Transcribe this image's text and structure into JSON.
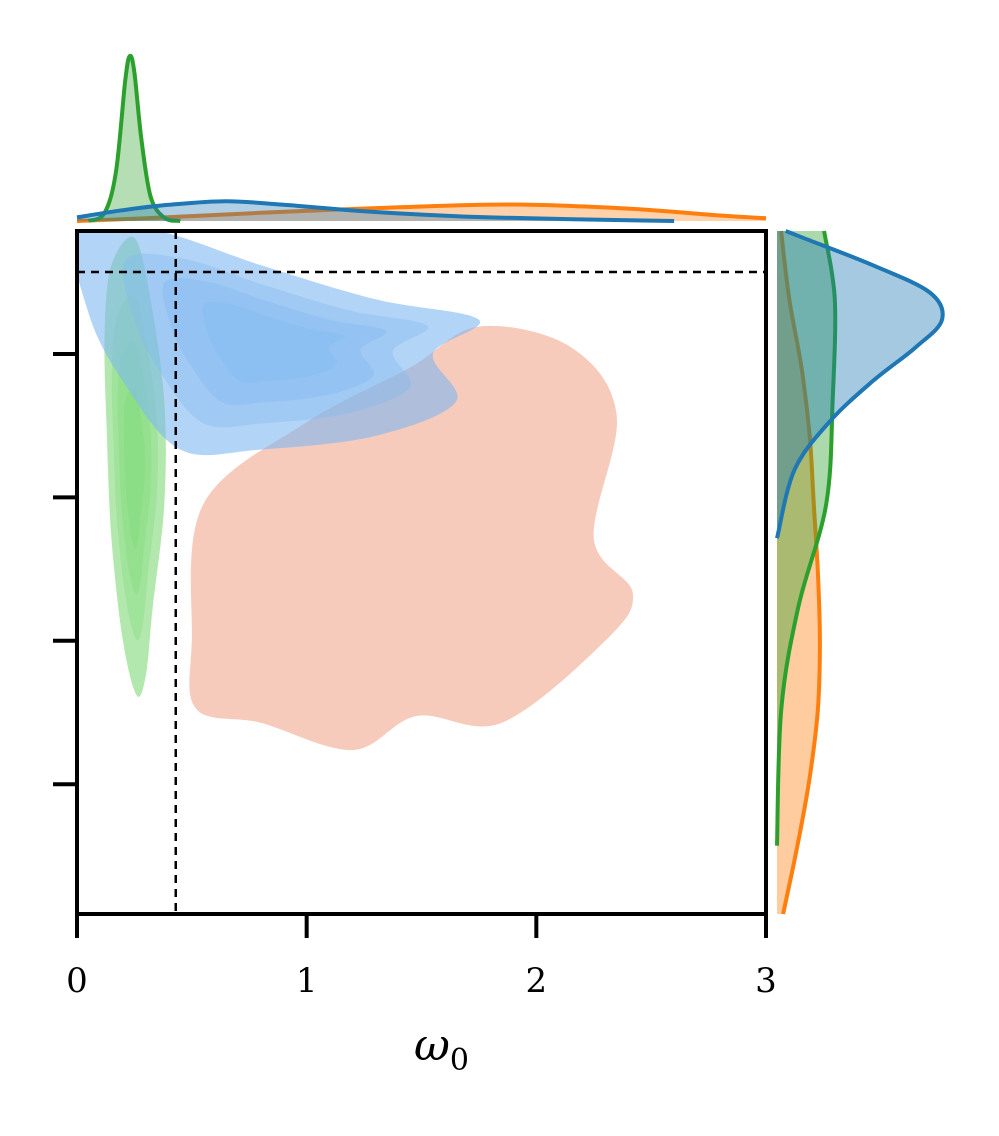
{
  "chart_data": {
    "type": "joint-kde",
    "title": "",
    "xlabel": "ω",
    "xlabel_subscript": "0",
    "ylabel": "",
    "xlim": [
      0,
      3
    ],
    "x_ticks": [
      0,
      1,
      2,
      3
    ],
    "x_tick_labels": [
      "0",
      "1",
      "2",
      "3"
    ],
    "ylim": [
      0,
      1
    ],
    "y_ticks": [
      0.19,
      0.4,
      0.61,
      0.82
    ],
    "y_tick_labels": [],
    "grid": false,
    "legend": "none",
    "reference_lines": {
      "x": 0.43,
      "y": 0.94
    },
    "series": [
      {
        "color": "#ff7f0e",
        "joint_fill": "#f4b7a1",
        "joint_region": [
          [
            1.2,
            0.24
          ],
          [
            1.48,
            0.29
          ],
          [
            1.85,
            0.28
          ],
          [
            2.3,
            0.4
          ],
          [
            2.42,
            0.47
          ],
          [
            2.25,
            0.55
          ],
          [
            2.35,
            0.73
          ],
          [
            2.15,
            0.83
          ],
          [
            1.75,
            0.86
          ],
          [
            1.45,
            0.8
          ],
          [
            1.0,
            0.72
          ],
          [
            0.55,
            0.6
          ],
          [
            0.5,
            0.4
          ],
          [
            0.52,
            0.3
          ],
          [
            0.8,
            0.28
          ]
        ],
        "x_marginal": [
          [
            0.0,
            0.0
          ],
          [
            0.3,
            0.01
          ],
          [
            0.8,
            0.03
          ],
          [
            1.4,
            0.05
          ],
          [
            1.9,
            0.06
          ],
          [
            2.4,
            0.045
          ],
          [
            2.8,
            0.02
          ],
          [
            3.0,
            0.01
          ]
        ],
        "y_marginal": [
          [
            0.0,
            0.03
          ],
          [
            0.1,
            0.1
          ],
          [
            0.2,
            0.16
          ],
          [
            0.3,
            0.2
          ],
          [
            0.4,
            0.21
          ],
          [
            0.5,
            0.2
          ],
          [
            0.6,
            0.18
          ],
          [
            0.7,
            0.16
          ],
          [
            0.8,
            0.12
          ],
          [
            0.9,
            0.06
          ],
          [
            1.0,
            0.02
          ]
        ]
      },
      {
        "color": "#2ca02c",
        "joint_fill": "#7fd977",
        "joint_region": [
          [
            0.26,
            0.32
          ],
          [
            0.3,
            0.35
          ],
          [
            0.33,
            0.45
          ],
          [
            0.38,
            0.6
          ],
          [
            0.38,
            0.75
          ],
          [
            0.32,
            0.9
          ],
          [
            0.25,
            0.99
          ],
          [
            0.15,
            0.95
          ],
          [
            0.12,
            0.85
          ],
          [
            0.13,
            0.7
          ],
          [
            0.15,
            0.55
          ],
          [
            0.2,
            0.4
          ]
        ],
        "x_marginal": [
          [
            0.05,
            0.0
          ],
          [
            0.12,
            0.05
          ],
          [
            0.17,
            0.3
          ],
          [
            0.21,
            0.85
          ],
          [
            0.23,
            1.0
          ],
          [
            0.25,
            0.9
          ],
          [
            0.28,
            0.5
          ],
          [
            0.32,
            0.15
          ],
          [
            0.38,
            0.02
          ],
          [
            0.45,
            0.0
          ]
        ],
        "y_marginal": [
          [
            0.1,
            0.0
          ],
          [
            0.3,
            0.02
          ],
          [
            0.45,
            0.1
          ],
          [
            0.6,
            0.23
          ],
          [
            0.75,
            0.26
          ],
          [
            0.9,
            0.27
          ],
          [
            1.0,
            0.22
          ]
        ]
      },
      {
        "color": "#1f77b4",
        "joint_fill": "#7fb8f0",
        "joint_region": [
          [
            0.0,
            1.0
          ],
          [
            0.35,
            1.0
          ],
          [
            0.8,
            0.95
          ],
          [
            1.3,
            0.9
          ],
          [
            1.75,
            0.87
          ],
          [
            1.55,
            0.82
          ],
          [
            1.65,
            0.75
          ],
          [
            1.3,
            0.7
          ],
          [
            0.8,
            0.68
          ],
          [
            0.45,
            0.68
          ],
          [
            0.2,
            0.78
          ],
          [
            0.05,
            0.88
          ]
        ],
        "x_marginal": [
          [
            0.0,
            0.02
          ],
          [
            0.2,
            0.06
          ],
          [
            0.4,
            0.09
          ],
          [
            0.65,
            0.11
          ],
          [
            0.9,
            0.09
          ],
          [
            1.3,
            0.05
          ],
          [
            1.8,
            0.02
          ],
          [
            2.6,
            0.0
          ]
        ],
        "y_marginal": [
          [
            0.55,
            0.0
          ],
          [
            0.65,
            0.1
          ],
          [
            0.72,
            0.3
          ],
          [
            0.78,
            0.55
          ],
          [
            0.83,
            0.8
          ],
          [
            0.87,
            0.95
          ],
          [
            0.91,
            0.88
          ],
          [
            0.95,
            0.55
          ],
          [
            0.99,
            0.15
          ],
          [
            1.0,
            0.05
          ]
        ]
      }
    ]
  }
}
